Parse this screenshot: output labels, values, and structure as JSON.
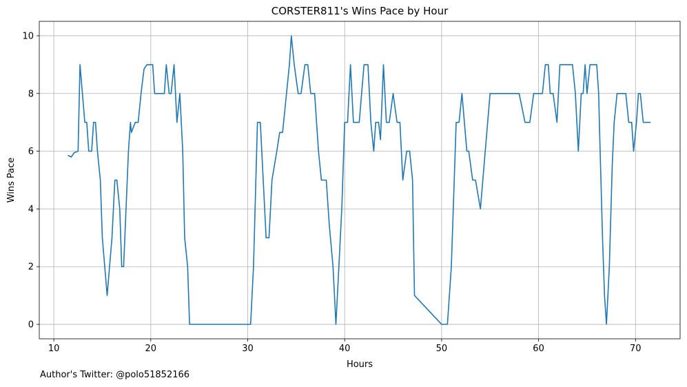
{
  "footnote": "Author's Twitter: @polo51852166",
  "chart_data": {
    "type": "line",
    "title": "CORSTER811's Wins Pace by Hour",
    "xlabel": "Hours",
    "ylabel": "Wins Pace",
    "xlim": [
      8.5,
      74.6
    ],
    "ylim": [
      -0.5,
      10.5
    ],
    "xticks": [
      10,
      20,
      30,
      40,
      50,
      60,
      70
    ],
    "yticks": [
      0,
      2,
      4,
      6,
      8,
      10
    ],
    "grid": true,
    "series": [
      {
        "color": "#1f77b4",
        "x": [
          11.5,
          11.8,
          12.1,
          12.5,
          12.7,
          13.0,
          13.2,
          13.4,
          13.6,
          13.9,
          14.1,
          14.3,
          14.5,
          14.8,
          15.0,
          15.5,
          16.0,
          16.3,
          16.5,
          16.8,
          17.0,
          17.2,
          17.7,
          17.9,
          18.0,
          18.4,
          18.7,
          19.0,
          19.3,
          19.6,
          19.9,
          20.2,
          20.4,
          20.8,
          21.2,
          21.4,
          21.6,
          21.9,
          22.1,
          22.4,
          22.7,
          23.0,
          23.3,
          23.5,
          23.8,
          24.0,
          30.3,
          30.6,
          31.0,
          31.3,
          31.6,
          31.9,
          32.2,
          32.5,
          33.0,
          33.3,
          33.6,
          34.0,
          34.3,
          34.5,
          34.8,
          35.2,
          35.5,
          35.9,
          36.2,
          36.5,
          36.9,
          37.3,
          37.6,
          37.9,
          38.1,
          38.4,
          38.8,
          39.1,
          39.4,
          39.7,
          40.0,
          40.3,
          40.6,
          40.9,
          41.2,
          41.5,
          42.0,
          42.4,
          42.7,
          43.0,
          43.2,
          43.5,
          43.7,
          44.0,
          44.3,
          44.6,
          45.0,
          45.4,
          45.7,
          46.0,
          46.4,
          46.7,
          47.0,
          47.2,
          50.0,
          50.3,
          50.6,
          51.0,
          51.3,
          51.5,
          51.8,
          52.1,
          52.6,
          52.8,
          53.2,
          53.5,
          54.0,
          54.5,
          55.0,
          57.7,
          58.0,
          58.6,
          58.9,
          59.1,
          59.5,
          60.1,
          60.4,
          60.7,
          61.0,
          61.2,
          61.5,
          61.9,
          62.2,
          63.1,
          63.5,
          63.8,
          64.1,
          64.4,
          64.6,
          64.8,
          65.0,
          65.3,
          65.6,
          66.0,
          66.2,
          66.3,
          66.6,
          66.8,
          67.0,
          67.3,
          67.6,
          67.8,
          68.1,
          68.5,
          69.0,
          69.3,
          69.6,
          69.8,
          70.1,
          70.3,
          70.5,
          70.8,
          71.0,
          71.5
        ],
        "y": [
          5.85,
          5.8,
          5.95,
          6.0,
          9.0,
          7.8,
          7.0,
          7.0,
          6.0,
          6.0,
          7.0,
          7.0,
          6.0,
          5.0,
          3.0,
          1.0,
          3.0,
          5.0,
          5.0,
          4.0,
          2.0,
          2.0,
          6.0,
          7.0,
          6.65,
          7.0,
          7.0,
          8.0,
          8.85,
          9.0,
          9.0,
          9.0,
          8.0,
          8.0,
          8.0,
          8.0,
          9.0,
          8.0,
          8.0,
          9.0,
          7.0,
          8.0,
          6.0,
          3.0,
          2.0,
          0.0,
          0.0,
          2.0,
          7.0,
          7.0,
          5.0,
          3.0,
          3.0,
          5.0,
          6.0,
          6.65,
          6.65,
          8.0,
          9.0,
          10.0,
          9.0,
          8.0,
          8.0,
          9.0,
          9.0,
          8.0,
          8.0,
          6.0,
          5.0,
          5.0,
          5.0,
          3.5,
          2.0,
          0.0,
          2.0,
          4.0,
          7.0,
          7.0,
          9.0,
          7.0,
          7.0,
          7.0,
          9.0,
          9.0,
          7.0,
          6.0,
          7.0,
          7.0,
          6.4,
          9.0,
          7.0,
          7.0,
          8.0,
          7.0,
          7.0,
          5.0,
          6.0,
          6.0,
          5.0,
          1.0,
          0.0,
          0.0,
          0.0,
          2.0,
          5.0,
          7.0,
          7.0,
          8.0,
          6.0,
          6.0,
          5.0,
          5.0,
          4.0,
          6.0,
          8.0,
          8.0,
          8.0,
          7.0,
          7.0,
          7.0,
          8.0,
          8.0,
          8.0,
          9.0,
          9.0,
          8.0,
          8.0,
          7.0,
          9.0,
          9.0,
          9.0,
          8.0,
          6.0,
          8.0,
          8.0,
          9.0,
          8.0,
          9.0,
          9.0,
          9.0,
          8.0,
          6.65,
          3.0,
          1.0,
          0.0,
          2.0,
          5.5,
          7.0,
          8.0,
          8.0,
          8.0,
          7.0,
          7.0,
          6.0,
          7.0,
          8.0,
          8.0,
          7.0,
          7.0,
          7.0
        ]
      }
    ]
  }
}
